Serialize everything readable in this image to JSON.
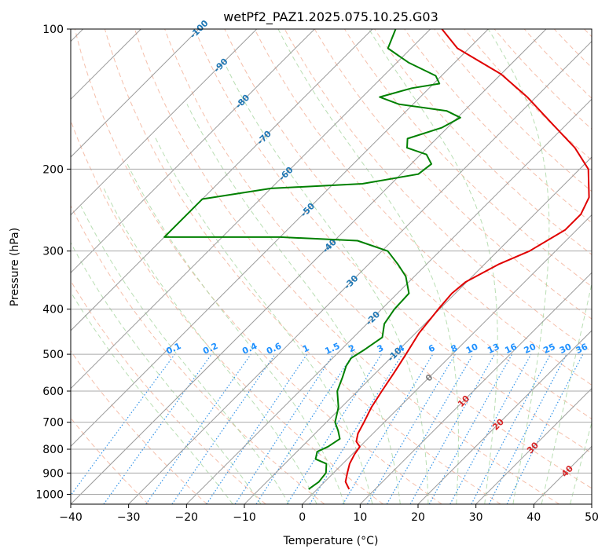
{
  "chart_data": {
    "type": "skew-t log-p",
    "title": "wetPf2_PAZ1.2025.075.10.25.G03",
    "xlabel": "Temperature (°C)",
    "ylabel": "Pressure (hPa)",
    "xlim": [
      -40,
      50
    ],
    "ylim_hpa": [
      1050,
      100
    ],
    "y_scale": "log",
    "skew": "isotherms slanted 45°",
    "x_ticks": [
      "−40",
      "−30",
      "−20",
      "−10",
      "0",
      "10",
      "20",
      "30",
      "40",
      "50"
    ],
    "y_ticks": [
      "100",
      "200",
      "300",
      "400",
      "500",
      "600",
      "700",
      "800",
      "900",
      "1000"
    ],
    "grid": true,
    "series": [
      {
        "name": "temperature",
        "color": "#e00000",
        "points": [
          {
            "p": 975,
            "t": 5.5
          },
          {
            "p": 940,
            "t": 3.6
          },
          {
            "p": 900,
            "t": 2.4
          },
          {
            "p": 860,
            "t": 1.2
          },
          {
            "p": 820,
            "t": 0.4
          },
          {
            "p": 790,
            "t": 0.0
          },
          {
            "p": 770,
            "t": -1.5
          },
          {
            "p": 740,
            "t": -2.6
          },
          {
            "p": 700,
            "t": -3.5
          },
          {
            "p": 650,
            "t": -4.8
          },
          {
            "p": 600,
            "t": -5.8
          },
          {
            "p": 550,
            "t": -6.8
          },
          {
            "p": 500,
            "t": -8.0
          },
          {
            "p": 450,
            "t": -9.4
          },
          {
            "p": 400,
            "t": -10.2
          },
          {
            "p": 370,
            "t": -10.6
          },
          {
            "p": 350,
            "t": -10.2
          },
          {
            "p": 320,
            "t": -7.5
          },
          {
            "p": 300,
            "t": -4.5
          },
          {
            "p": 270,
            "t": -2.0
          },
          {
            "p": 250,
            "t": -2.0
          },
          {
            "p": 230,
            "t": -3.5
          },
          {
            "p": 200,
            "t": -8.5
          },
          {
            "p": 180,
            "t": -14.5
          },
          {
            "p": 160,
            "t": -22.5
          },
          {
            "p": 140,
            "t": -31.5
          },
          {
            "p": 125,
            "t": -40.0
          },
          {
            "p": 110,
            "t": -52.0
          },
          {
            "p": 100,
            "t": -58.0
          }
        ]
      },
      {
        "name": "dewpoint",
        "color": "#008000",
        "points": [
          {
            "p": 975,
            "t": -1.5
          },
          {
            "p": 940,
            "t": -1.0
          },
          {
            "p": 900,
            "t": -1.3
          },
          {
            "p": 860,
            "t": -2.8
          },
          {
            "p": 840,
            "t": -5.5
          },
          {
            "p": 810,
            "t": -6.5
          },
          {
            "p": 790,
            "t": -5.5
          },
          {
            "p": 760,
            "t": -4.8
          },
          {
            "p": 730,
            "t": -6.5
          },
          {
            "p": 700,
            "t": -8.5
          },
          {
            "p": 650,
            "t": -10.5
          },
          {
            "p": 600,
            "t": -13.5
          },
          {
            "p": 560,
            "t": -15.0
          },
          {
            "p": 530,
            "t": -16.3
          },
          {
            "p": 510,
            "t": -16.8
          },
          {
            "p": 490,
            "t": -16.0
          },
          {
            "p": 460,
            "t": -15.0
          },
          {
            "p": 430,
            "t": -17.0
          },
          {
            "p": 400,
            "t": -17.8
          },
          {
            "p": 370,
            "t": -18.0
          },
          {
            "p": 340,
            "t": -21.5
          },
          {
            "p": 320,
            "t": -25.0
          },
          {
            "p": 300,
            "t": -29.0
          },
          {
            "p": 285,
            "t": -36.0
          },
          {
            "p": 280,
            "t": -50.0
          },
          {
            "p": 280,
            "t": -70.0
          },
          {
            "p": 232,
            "t": -70.0
          },
          {
            "p": 220,
            "t": -60.0
          },
          {
            "p": 215,
            "t": -45.0
          },
          {
            "p": 205,
            "t": -37.0
          },
          {
            "p": 195,
            "t": -36.5
          },
          {
            "p": 186,
            "t": -39.0
          },
          {
            "p": 180,
            "t": -43.5
          },
          {
            "p": 172,
            "t": -45.0
          },
          {
            "p": 163,
            "t": -41.0
          },
          {
            "p": 155,
            "t": -39.5
          },
          {
            "p": 150,
            "t": -43.0
          },
          {
            "p": 145,
            "t": -52.5
          },
          {
            "p": 140,
            "t": -57.0
          },
          {
            "p": 134,
            "t": -53.0
          },
          {
            "p": 131,
            "t": -49.0
          },
          {
            "p": 126,
            "t": -51.0
          },
          {
            "p": 118,
            "t": -58.0
          },
          {
            "p": 110,
            "t": -64.0
          },
          {
            "p": 100,
            "t": -66.0
          }
        ]
      }
    ],
    "annotations": {
      "isotherm_labels": [
        "-100",
        "-90",
        "-80",
        "-70",
        "-60",
        "-50",
        "-40",
        "-30",
        "-20",
        "-10",
        "0",
        "10",
        "20",
        "30",
        "40"
      ],
      "mixing_ratio_labels": [
        "0.1",
        "0.2",
        "0.4",
        "0.6",
        "1",
        "1.5",
        "2",
        "3",
        "4",
        "6",
        "8",
        "10",
        "13",
        "16",
        "20",
        "25",
        "30",
        "36"
      ]
    },
    "background_lines": {
      "isotherms": "gray solid",
      "dry_adiabats": "salmon dashed",
      "moist_adiabats": "green dashed",
      "mixing_ratio": "blue dotted"
    },
    "colors": {
      "temperature": "#e00000",
      "dewpoint": "#008000",
      "isotherm_label_cold": "#1f77b4",
      "isotherm_label_warm": "#d62728",
      "isotherm_label_zero": "#7f7f7f",
      "mixing_ratio_label": "#1e90ff"
    }
  }
}
